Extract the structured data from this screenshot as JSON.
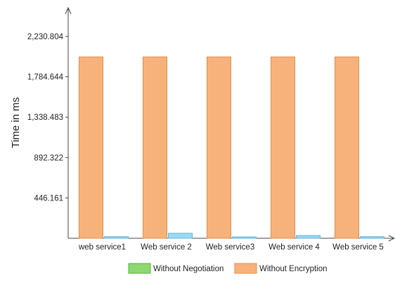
{
  "chart_data": {
    "type": "bar",
    "title": "",
    "xlabel": "",
    "ylabel": "Time in ms",
    "categories": [
      "web service1",
      "Web service 2",
      "Web service3",
      "Web service 4",
      "Web service 5"
    ],
    "y_ticks": [
      "446.161",
      "892.322",
      "1,338.483",
      "1,784.644",
      "2,230.804"
    ],
    "y_tick_values": [
      446.161,
      892.322,
      1338.483,
      1784.644,
      2230.804
    ],
    "ylim": [
      0,
      2230.804
    ],
    "grid": false,
    "legend_position": "bottom",
    "series": [
      {
        "name": "Without Negotiation",
        "color": "#8fd86f",
        "border": "#58b03a",
        "values": [
          0,
          0,
          0,
          0,
          0
        ],
        "draw": false
      },
      {
        "name": "Without  Encryption",
        "color": "#f7b27c",
        "border": "#e98a3e",
        "values": [
          2005,
          2005,
          2005,
          2005,
          2005
        ],
        "draw": true
      },
      {
        "name": "",
        "color": "#9fd8f2",
        "border": "#5fb3da",
        "values": [
          18,
          55,
          15,
          30,
          18
        ],
        "draw": true
      }
    ]
  }
}
